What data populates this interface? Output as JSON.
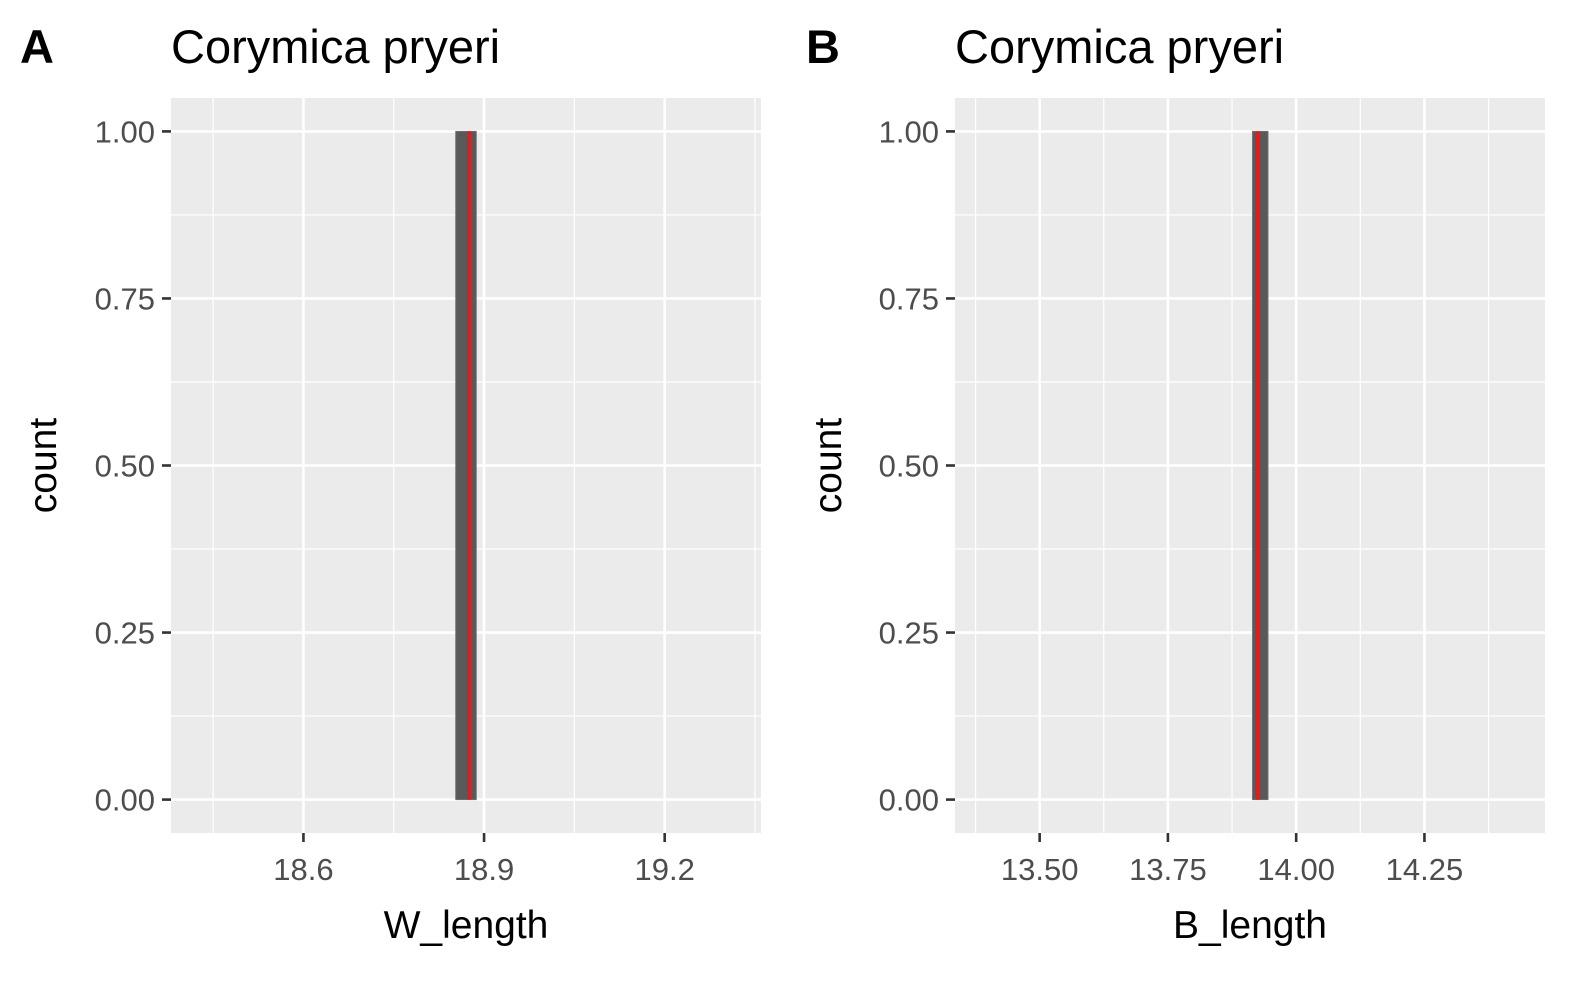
{
  "chart_data": [
    {
      "type": "bar",
      "subtype": "histogram",
      "panel_tag": "A",
      "title": "Corymica pryeri",
      "xlabel": "W_length",
      "ylabel": "count",
      "xlim": [
        18.38,
        19.36
      ],
      "ylim": [
        -0.05,
        1.05
      ],
      "x_ticks": [
        18.6,
        18.9,
        19.2
      ],
      "x_tick_labels": [
        "18.6",
        "18.9",
        "19.2"
      ],
      "y_ticks": [
        0,
        0.25,
        0.5,
        0.75,
        1
      ],
      "y_tick_labels": [
        "0.00",
        "0.25",
        "0.50",
        "0.75",
        "1.00"
      ],
      "bins": [
        {
          "xmin": 18.853,
          "xmax": 18.887,
          "count": 1
        }
      ],
      "reference_line": {
        "x": 18.875,
        "color": "#e41a1c"
      },
      "bar_color": "#595959",
      "grid": true,
      "panel_background": "#ebebeb"
    },
    {
      "type": "bar",
      "subtype": "histogram",
      "panel_tag": "B",
      "title": "Corymica pryeri",
      "xlabel": "B_length",
      "ylabel": "count",
      "xlim": [
        13.335,
        14.485
      ],
      "ylim": [
        -0.05,
        1.05
      ],
      "x_ticks": [
        13.5,
        13.75,
        14,
        14.25
      ],
      "x_tick_labels": [
        "13.50",
        "13.75",
        "14.00",
        "14.25"
      ],
      "y_ticks": [
        0,
        0.25,
        0.5,
        0.75,
        1
      ],
      "y_tick_labels": [
        "0.00",
        "0.25",
        "0.50",
        "0.75",
        "1.00"
      ],
      "bins": [
        {
          "xmin": 13.915,
          "xmax": 13.945,
          "count": 1
        }
      ],
      "reference_line": {
        "x": 13.925,
        "color": "#e41a1c"
      },
      "bar_color": "#595959",
      "grid": true,
      "panel_background": "#ebebeb"
    }
  ]
}
